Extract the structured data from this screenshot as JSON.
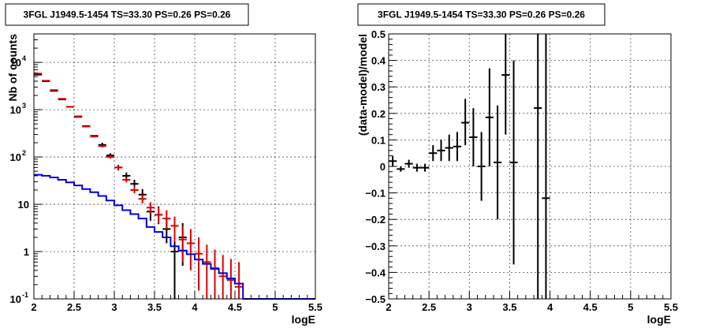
{
  "chart_data": [
    {
      "type": "scatter",
      "title": "3FGL J1949.5-1454 TS=33.30 PS=0.26 PS=0.26",
      "xlabel": "logE",
      "ylabel": "Nb of counts",
      "xlim": [
        2,
        5.5
      ],
      "ylim": [
        0.1,
        40000
      ],
      "yscale": "log",
      "grid": true,
      "x_ticks": [
        "2",
        "2.5",
        "3",
        "3.5",
        "4",
        "4.5",
        "5",
        "5.5"
      ],
      "y_ticks": [
        {
          "value": 0.1,
          "label": "10",
          "exp": "-1"
        },
        {
          "value": 1,
          "label": "1",
          "exp": ""
        },
        {
          "value": 10,
          "label": "10",
          "exp": ""
        },
        {
          "value": 100,
          "label": "10",
          "exp": "2"
        },
        {
          "value": 1000,
          "label": "10",
          "exp": "3"
        },
        {
          "value": 10000,
          "label": "10",
          "exp": "4"
        }
      ],
      "series": [
        {
          "color": "#000000",
          "style": "points",
          "x": [
            2.05,
            2.15,
            2.25,
            2.35,
            2.45,
            2.55,
            2.65,
            2.75,
            2.85,
            2.95,
            3.05,
            3.15,
            3.25,
            3.35,
            3.45,
            3.55,
            3.65,
            3.75,
            3.85
          ],
          "y": [
            5500,
            4000,
            2500,
            1650,
            1150,
            720,
            450,
            280,
            180,
            108,
            60,
            40,
            27,
            16,
            7,
            6,
            3,
            1,
            2
          ],
          "ylow": [
            5500,
            4000,
            2500,
            1650,
            1150,
            720,
            450,
            280,
            160,
            96,
            52,
            34,
            22,
            12,
            4.5,
            3.8,
            1.5,
            0.1,
            0.5
          ],
          "yhigh": [
            5500,
            4000,
            2500,
            1650,
            1150,
            720,
            450,
            280,
            200,
            120,
            68,
            47,
            33,
            21,
            10,
            9,
            5,
            3,
            4
          ]
        },
        {
          "color": "#dd0000",
          "style": "points",
          "x": [
            2.05,
            2.15,
            2.25,
            2.35,
            2.45,
            2.55,
            2.65,
            2.75,
            2.85,
            2.95,
            3.05,
            3.15,
            3.25,
            3.35,
            3.45,
            3.55,
            3.65,
            3.75,
            3.85,
            3.95,
            4.05,
            4.15,
            4.25,
            4.35,
            4.45,
            4.55
          ],
          "y": [
            5800,
            4100,
            2600,
            1700,
            1150,
            700,
            440,
            270,
            170,
            100,
            60,
            33,
            20,
            13,
            8.5,
            6,
            5,
            3.5,
            1.8,
            1.5,
            0.9,
            0.6,
            0.45,
            0.3,
            0.25,
            0.18
          ],
          "ylow": [
            5800,
            4100,
            2600,
            1700,
            1150,
            700,
            440,
            270,
            160,
            92,
            54,
            29,
            17,
            10.5,
            6.5,
            4,
            3,
            1.6,
            0.6,
            0.4,
            0.15,
            0.1,
            0.1,
            0.1,
            0.1,
            0.1
          ],
          "yhigh": [
            5800,
            4100,
            2600,
            1700,
            1150,
            700,
            440,
            270,
            180,
            108,
            66,
            37,
            24,
            16,
            11,
            8.5,
            7.5,
            5.5,
            3.5,
            3,
            2,
            1.4,
            1.1,
            0.85,
            0.7,
            0.6
          ]
        },
        {
          "color": "#0000dd",
          "style": "step",
          "edges": [
            2.0,
            2.1,
            2.2,
            2.3,
            2.4,
            2.5,
            2.6,
            2.7,
            2.8,
            2.9,
            3.0,
            3.1,
            3.2,
            3.3,
            3.4,
            3.5,
            3.6,
            3.7,
            3.8,
            3.9,
            4.0,
            4.1,
            4.2,
            4.3,
            4.4,
            4.5,
            4.6,
            4.7,
            4.8,
            4.9,
            5.0,
            5.1,
            5.2,
            5.3,
            5.4,
            5.5
          ],
          "values": [
            42,
            40,
            37,
            33,
            29,
            25,
            21,
            18,
            15,
            12,
            9.5,
            7.5,
            6.2,
            5,
            3.3,
            2.6,
            2.0,
            1.3,
            1.05,
            0.88,
            0.68,
            0.55,
            0.43,
            0.35,
            0.27,
            0.21,
            0.1,
            0.1,
            0.1,
            0.1,
            0.1,
            0.1,
            0.1,
            0.1,
            0.1
          ]
        }
      ]
    },
    {
      "type": "scatter",
      "title": "3FGL J1949.5-1454 TS=33.30 PS=0.26 PS=0.26",
      "xlabel": "logE",
      "ylabel": "(data-model)/model",
      "xlim": [
        2,
        5.5
      ],
      "ylim": [
        -0.5,
        0.5
      ],
      "grid": true,
      "x_ticks": [
        "2",
        "2.5",
        "3",
        "3.5",
        "4",
        "4.5",
        "5",
        "5.5"
      ],
      "y_ticks": [
        "−0.5",
        "−0.4",
        "−0.3",
        "−0.2",
        "−0.1",
        "0",
        "0.1",
        "0.2",
        "0.3",
        "0.4",
        "0.5"
      ],
      "series": [
        {
          "color": "#000000",
          "style": "points",
          "x": [
            2.05,
            2.15,
            2.25,
            2.35,
            2.45,
            2.55,
            2.65,
            2.75,
            2.85,
            2.95,
            3.05,
            3.15,
            3.25,
            3.35,
            3.45,
            3.55,
            3.85,
            3.95
          ],
          "y": [
            0.02,
            -0.01,
            0.01,
            -0.005,
            -0.005,
            0.05,
            0.06,
            0.07,
            0.075,
            0.165,
            0.11,
            0.0,
            0.185,
            0.015,
            0.345,
            0.015,
            0.22,
            -0.12
          ],
          "ylow": [
            0.0,
            -0.02,
            -0.005,
            -0.02,
            -0.02,
            0.02,
            0.02,
            0.02,
            0.02,
            0.08,
            0.0,
            -0.13,
            0.0,
            -0.2,
            0.12,
            -0.37,
            -0.5,
            -0.5
          ],
          "yhigh": [
            0.04,
            0.0,
            0.025,
            0.01,
            0.01,
            0.08,
            0.1,
            0.12,
            0.13,
            0.255,
            0.22,
            0.13,
            0.37,
            0.23,
            0.5,
            0.4,
            0.5,
            0.5
          ]
        }
      ]
    }
  ]
}
